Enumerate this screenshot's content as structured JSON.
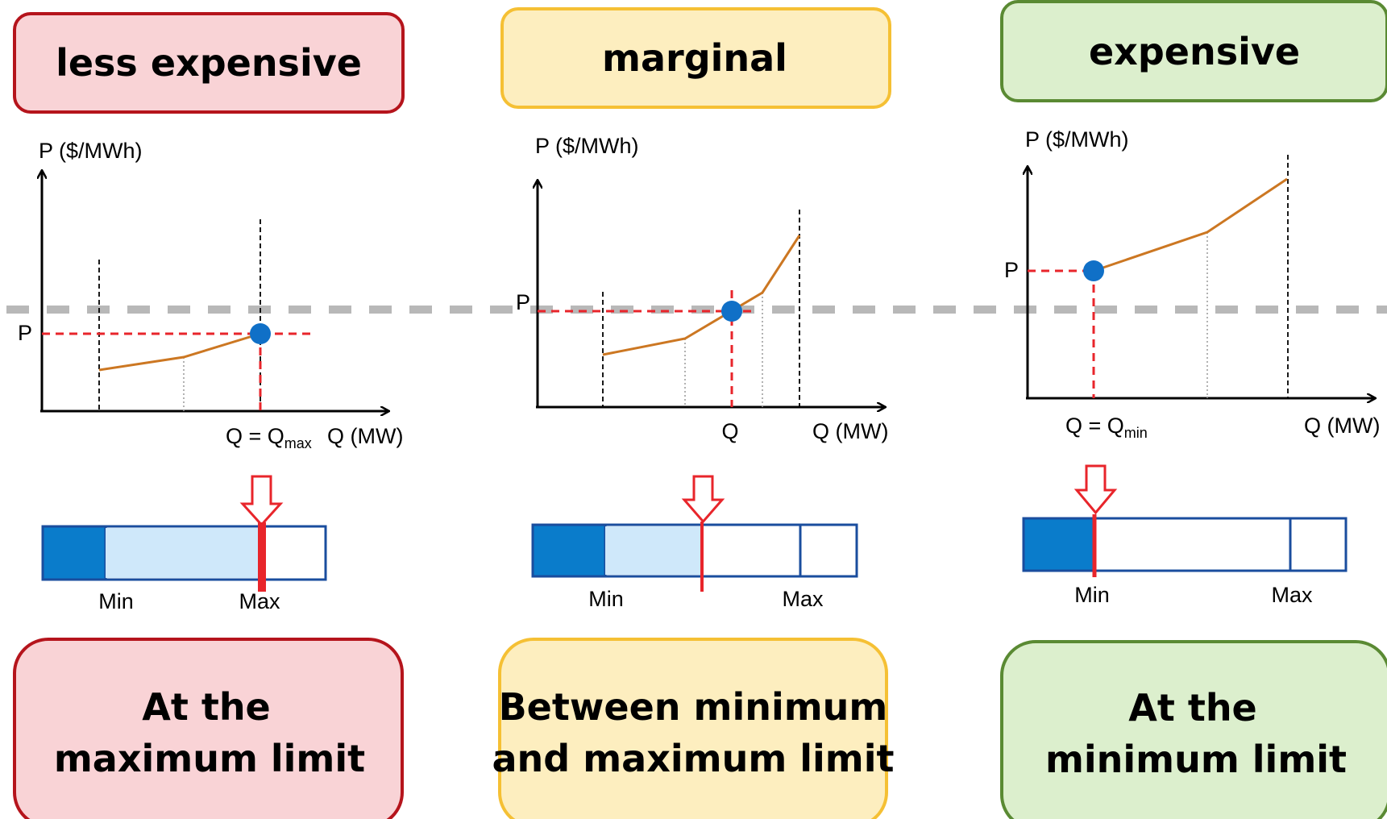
{
  "colors": {
    "red_fill": "#f9d3d6",
    "red_stroke": "#b5141c",
    "yellow_fill": "#fdeebf",
    "yellow_stroke": "#f5c034",
    "green_fill": "#dcefcd",
    "green_stroke": "#5a8a33",
    "curve": "#cc7722",
    "point": "#1070c7",
    "dashed_red": "#e8252b",
    "price_line": "#b8b8b8",
    "bar_dark": "#0a7ccb",
    "bar_light": "#cfe8fa",
    "bar_outline": "#1a4d9e"
  },
  "panels": [
    {
      "id": "less-expensive",
      "top_label": "less expensive",
      "bottom_label_line1": "At the",
      "bottom_label_line2": "maximum  limit",
      "ylabel": "P ($/MWh)",
      "p_label": "P",
      "q_label_main": "Q = Q",
      "q_label_sub": "max",
      "xlabel": "Q (MW)",
      "bar_min_label": "Min",
      "bar_max_label": "Max"
    },
    {
      "id": "marginal",
      "top_label": "marginal",
      "bottom_label_line1": "Between minimum",
      "bottom_label_line2": "and maximum  limit",
      "ylabel": "P ($/MWh)",
      "p_label": "P",
      "q_label_main": "Q",
      "q_label_sub": "",
      "xlabel": "Q (MW)",
      "bar_min_label": "Min",
      "bar_max_label": "Max"
    },
    {
      "id": "expensive",
      "top_label": "expensive",
      "bottom_label_line1": "At the",
      "bottom_label_line2": "minimum  limit",
      "ylabel": "P ($/MWh)",
      "p_label": "P",
      "q_label_main": "Q = Q",
      "q_label_sub": "min",
      "xlabel": "Q (MW)",
      "bar_min_label": "Min",
      "bar_max_label": "Max"
    }
  ]
}
